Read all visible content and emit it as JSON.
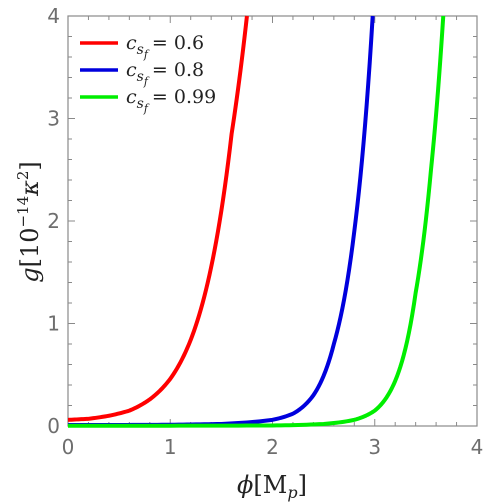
{
  "chart_data": {
    "type": "line",
    "title": "",
    "xlabel": "ϕ[M_p]",
    "ylabel": "g[10^{-14}κ^2]",
    "xlim": [
      0,
      4
    ],
    "ylim": [
      0,
      4
    ],
    "xticks": [
      "0",
      "1",
      "2",
      "3",
      "4"
    ],
    "yticks": [
      "0",
      "1",
      "2",
      "3",
      "4"
    ],
    "grid": false,
    "legend_position": "top-left",
    "series": [
      {
        "name": "c_{s_f} = 0.6",
        "color": "#ff0000",
        "x": [
          0,
          0.2,
          0.4,
          0.6,
          0.8,
          1.0,
          1.2,
          1.4,
          1.6,
          1.75
        ],
        "y": [
          0.06,
          0.07,
          0.1,
          0.15,
          0.26,
          0.46,
          0.84,
          1.55,
          2.85,
          4.0
        ]
      },
      {
        "name": "c_{s_f} = 0.8",
        "color": "#0000dd",
        "x": [
          0,
          0.5,
          1.0,
          1.5,
          2.0,
          2.2,
          2.4,
          2.6,
          2.8,
          2.98
        ],
        "y": [
          0.01,
          0.01,
          0.012,
          0.02,
          0.06,
          0.12,
          0.3,
          0.8,
          1.9,
          4.0
        ]
      },
      {
        "name": "c_{s_f} = 0.99",
        "color": "#00ee00",
        "x": [
          0,
          1.0,
          2.0,
          2.5,
          2.8,
          3.0,
          3.2,
          3.4,
          3.55,
          3.67
        ],
        "y": [
          0.0,
          0.0,
          0.005,
          0.02,
          0.06,
          0.15,
          0.44,
          1.3,
          2.5,
          4.0
        ]
      }
    ],
    "legend": [
      {
        "symbol": "c",
        "sub": "s",
        "subsub": "f",
        "value": "= 0.6",
        "color": "#ff0000"
      },
      {
        "symbol": "c",
        "sub": "s",
        "subsub": "f",
        "value": "= 0.8",
        "color": "#0000dd"
      },
      {
        "symbol": "c",
        "sub": "s",
        "subsub": "f",
        "value": "= 0.99",
        "color": "#00ee00"
      }
    ],
    "axis_text": {
      "xlabel_main": "ϕ",
      "xlabel_unit": "[M",
      "xlabel_sub": "p",
      "xlabel_close": "]",
      "ylabel_main": "g",
      "ylabel_unit": "[10",
      "ylabel_exp": "−14",
      "ylabel_kappa": "κ",
      "ylabel_kexp": "2",
      "ylabel_close": "]"
    }
  }
}
